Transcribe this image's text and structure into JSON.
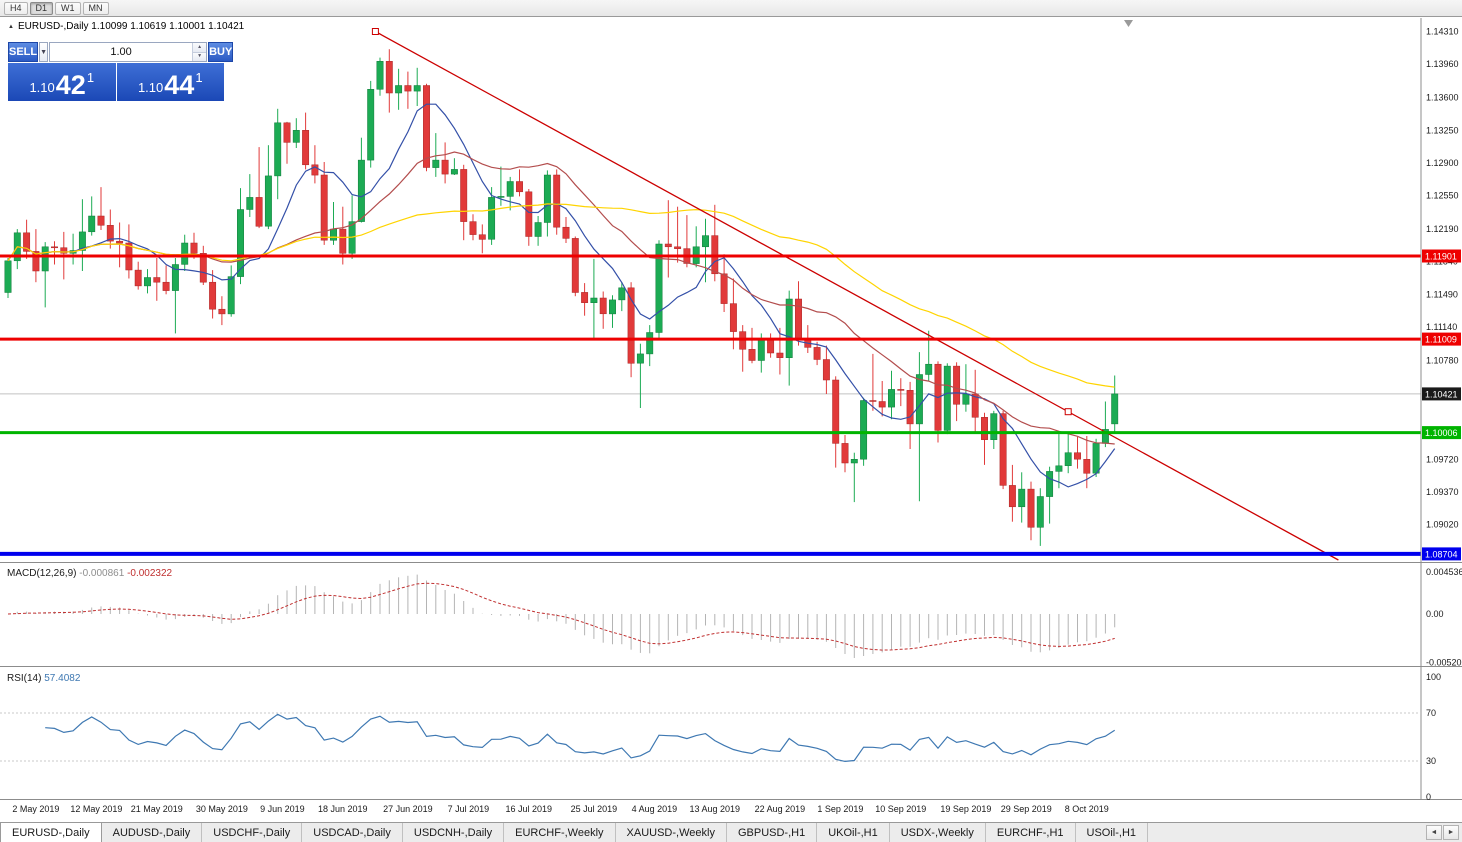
{
  "window": {
    "timeframes": [
      "H4",
      "D1",
      "W1",
      "MN"
    ],
    "active_timeframe": "D1"
  },
  "symbol_header": {
    "marker": "▲",
    "text": "EURUSD-,Daily 1.10099 1.10619 1.10001 1.10421"
  },
  "trade_panel": {
    "sell_label": "SELL",
    "buy_label": "BUY",
    "volume": "1.00",
    "dropdown_icon": "▼",
    "spin_up_icon": "▲",
    "spin_down_icon": "▼",
    "bid": {
      "prefix": "1.10",
      "big": "42",
      "sup": "1"
    },
    "ask": {
      "prefix": "1.10",
      "big": "44",
      "sup": "1"
    }
  },
  "chart_data": {
    "type": "candlestick",
    "symbol": "EURUSD-,Daily",
    "ohlc": [
      [
        1.1151,
        1.1188,
        1.1145,
        1.1185
      ],
      [
        1.1185,
        1.1219,
        1.1176,
        1.1215
      ],
      [
        1.1215,
        1.1229,
        1.1187,
        1.1195
      ],
      [
        1.1195,
        1.1219,
        1.1162,
        1.1174
      ],
      [
        1.1174,
        1.1205,
        1.1135,
        1.12
      ],
      [
        1.12,
        1.1206,
        1.1181,
        1.1199
      ],
      [
        1.1199,
        1.1216,
        1.1165,
        1.1193
      ],
      [
        1.1193,
        1.1214,
        1.1181,
        1.1196
      ],
      [
        1.1196,
        1.1251,
        1.1174,
        1.1216
      ],
      [
        1.1216,
        1.1254,
        1.1212,
        1.1233
      ],
      [
        1.1233,
        1.1264,
        1.1218,
        1.1223
      ],
      [
        1.1223,
        1.124,
        1.1198,
        1.1206
      ],
      [
        1.1206,
        1.1226,
        1.1178,
        1.1204
      ],
      [
        1.1204,
        1.1224,
        1.1166,
        1.1175
      ],
      [
        1.1175,
        1.1184,
        1.1154,
        1.1158
      ],
      [
        1.1158,
        1.1176,
        1.115,
        1.1167
      ],
      [
        1.1167,
        1.1188,
        1.1142,
        1.1162
      ],
      [
        1.1162,
        1.118,
        1.1149,
        1.1153
      ],
      [
        1.1153,
        1.1188,
        1.1107,
        1.1181
      ],
      [
        1.1181,
        1.1213,
        1.1174,
        1.1204
      ],
      [
        1.1204,
        1.1215,
        1.1187,
        1.1193
      ],
      [
        1.1193,
        1.1201,
        1.1159,
        1.1162
      ],
      [
        1.1162,
        1.1175,
        1.1123,
        1.1133
      ],
      [
        1.1133,
        1.1147,
        1.1116,
        1.1128
      ],
      [
        1.1128,
        1.118,
        1.1125,
        1.1168
      ],
      [
        1.1168,
        1.1263,
        1.116,
        1.124
      ],
      [
        1.124,
        1.1278,
        1.1232,
        1.1253
      ],
      [
        1.1253,
        1.1307,
        1.122,
        1.1222
      ],
      [
        1.1222,
        1.1309,
        1.1219,
        1.1276
      ],
      [
        1.1276,
        1.1348,
        1.1251,
        1.1333
      ],
      [
        1.1333,
        1.1334,
        1.1289,
        1.1312
      ],
      [
        1.1312,
        1.1338,
        1.1306,
        1.1325
      ],
      [
        1.1325,
        1.1344,
        1.1283,
        1.1288
      ],
      [
        1.1288,
        1.1309,
        1.1268,
        1.1277
      ],
      [
        1.1277,
        1.1291,
        1.1202,
        1.1207
      ],
      [
        1.1207,
        1.1248,
        1.1202,
        1.1219
      ],
      [
        1.1219,
        1.1243,
        1.1181,
        1.1193
      ],
      [
        1.1193,
        1.1255,
        1.1187,
        1.1227
      ],
      [
        1.1227,
        1.1317,
        1.1226,
        1.1293
      ],
      [
        1.1293,
        1.1378,
        1.1285,
        1.1369
      ],
      [
        1.1369,
        1.1403,
        1.1362,
        1.1399
      ],
      [
        1.1399,
        1.1412,
        1.1344,
        1.1365
      ],
      [
        1.1365,
        1.1391,
        1.1347,
        1.1373
      ],
      [
        1.1373,
        1.1388,
        1.1348,
        1.1367
      ],
      [
        1.1367,
        1.1392,
        1.1351,
        1.1373
      ],
      [
        1.1373,
        1.1375,
        1.1281,
        1.1285
      ],
      [
        1.1285,
        1.1322,
        1.1275,
        1.1293
      ],
      [
        1.1293,
        1.1312,
        1.1268,
        1.1278
      ],
      [
        1.1278,
        1.1295,
        1.1277,
        1.1283
      ],
      [
        1.1283,
        1.1288,
        1.1207,
        1.1227
      ],
      [
        1.1227,
        1.1235,
        1.1207,
        1.1213
      ],
      [
        1.1213,
        1.1224,
        1.1193,
        1.1208
      ],
      [
        1.1208,
        1.1264,
        1.1202,
        1.1253
      ],
      [
        1.1253,
        1.1286,
        1.1244,
        1.1254
      ],
      [
        1.1254,
        1.1275,
        1.1239,
        1.127
      ],
      [
        1.127,
        1.1283,
        1.1254,
        1.1259
      ],
      [
        1.1259,
        1.1262,
        1.1201,
        1.1211
      ],
      [
        1.1211,
        1.1233,
        1.1201,
        1.1226
      ],
      [
        1.1226,
        1.1282,
        1.1211,
        1.1277
      ],
      [
        1.1277,
        1.1283,
        1.1213,
        1.1221
      ],
      [
        1.1221,
        1.1232,
        1.1204,
        1.1209
      ],
      [
        1.1209,
        1.1211,
        1.1147,
        1.1151
      ],
      [
        1.1151,
        1.1161,
        1.1126,
        1.114
      ],
      [
        1.114,
        1.1187,
        1.1101,
        1.1145
      ],
      [
        1.1145,
        1.1152,
        1.1112,
        1.1128
      ],
      [
        1.1128,
        1.1148,
        1.1113,
        1.1143
      ],
      [
        1.1143,
        1.1162,
        1.1131,
        1.1156
      ],
      [
        1.1156,
        1.1162,
        1.106,
        1.1075
      ],
      [
        1.1075,
        1.1096,
        1.1027,
        1.1085
      ],
      [
        1.1085,
        1.1116,
        1.1072,
        1.1108
      ],
      [
        1.1108,
        1.1207,
        1.1101,
        1.1203
      ],
      [
        1.1203,
        1.125,
        1.1167,
        1.12
      ],
      [
        1.12,
        1.1243,
        1.1183,
        1.1198
      ],
      [
        1.1198,
        1.1234,
        1.1178,
        1.1182
      ],
      [
        1.1182,
        1.1222,
        1.1178,
        1.12
      ],
      [
        1.12,
        1.123,
        1.1162,
        1.1212
      ],
      [
        1.1212,
        1.1245,
        1.1163,
        1.1171
      ],
      [
        1.1171,
        1.1192,
        1.113,
        1.1139
      ],
      [
        1.1139,
        1.1166,
        1.109,
        1.1109
      ],
      [
        1.1109,
        1.1116,
        1.1066,
        1.109
      ],
      [
        1.109,
        1.1113,
        1.1075,
        1.1078
      ],
      [
        1.1078,
        1.1107,
        1.1065,
        1.11
      ],
      [
        1.11,
        1.1107,
        1.1081,
        1.1086
      ],
      [
        1.1086,
        1.1113,
        1.1063,
        1.1081
      ],
      [
        1.1081,
        1.1153,
        1.1051,
        1.1144
      ],
      [
        1.1144,
        1.1163,
        1.1094,
        1.1101
      ],
      [
        1.1101,
        1.1116,
        1.1086,
        1.1092
      ],
      [
        1.1092,
        1.1098,
        1.1073,
        1.1079
      ],
      [
        1.1079,
        1.1094,
        1.1042,
        1.1057
      ],
      [
        1.1057,
        1.1061,
        1.0963,
        1.0989
      ],
      [
        1.0989,
        1.0998,
        1.0958,
        1.0968
      ],
      [
        1.0968,
        1.0979,
        1.0926,
        1.0972
      ],
      [
        1.0972,
        1.1038,
        1.0965,
        1.1035
      ],
      [
        1.1035,
        1.1085,
        1.1024,
        1.1034
      ],
      [
        1.1034,
        1.1056,
        1.1018,
        1.1028
      ],
      [
        1.1028,
        1.1067,
        1.1015,
        1.1047
      ],
      [
        1.1047,
        1.1059,
        1.1029,
        1.1046
      ],
      [
        1.1046,
        1.1055,
        1.0983,
        1.101
      ],
      [
        1.101,
        1.1087,
        1.0927,
        1.1063
      ],
      [
        1.1063,
        1.111,
        1.1056,
        1.1074
      ],
      [
        1.1074,
        1.1077,
        1.099,
        1.1003
      ],
      [
        1.1003,
        1.1075,
        1.0999,
        1.1072
      ],
      [
        1.1072,
        1.1076,
        1.1013,
        1.1031
      ],
      [
        1.1031,
        1.1074,
        1.1023,
        1.1042
      ],
      [
        1.1042,
        1.1068,
        1.1,
        1.1017
      ],
      [
        1.1017,
        1.1022,
        1.0966,
        1.0993
      ],
      [
        1.0993,
        1.1024,
        1.0983,
        1.1021
      ],
      [
        1.1021,
        1.1024,
        1.094,
        1.0944
      ],
      [
        1.0944,
        1.0966,
        1.0905,
        1.0921
      ],
      [
        1.0921,
        1.0958,
        1.0904,
        1.094
      ],
      [
        1.094,
        1.0948,
        1.0885,
        1.0899
      ],
      [
        1.0899,
        1.0941,
        1.0879,
        1.0932
      ],
      [
        1.0932,
        1.0964,
        1.0903,
        1.0959
      ],
      [
        1.0959,
        1.0999,
        1.0941,
        1.0965
      ],
      [
        1.0965,
        1.0999,
        1.0957,
        1.0979
      ],
      [
        1.0979,
        1.0996,
        1.0962,
        1.0972
      ],
      [
        1.0972,
        1.0997,
        1.0941,
        1.0957
      ],
      [
        1.0957,
        1.0994,
        1.0953,
        1.0989
      ],
      [
        1.0989,
        1.1034,
        1.0985,
        1.1004
      ],
      [
        1.10099,
        1.10619,
        1.10001,
        1.10421
      ]
    ],
    "x_labels": [
      {
        "text": "2 May 2019",
        "bar": 3
      },
      {
        "text": "12 May 2019",
        "bar": 9.5
      },
      {
        "text": "21 May 2019",
        "bar": 16
      },
      {
        "text": "30 May 2019",
        "bar": 23
      },
      {
        "text": "9 Jun 2019",
        "bar": 29.5
      },
      {
        "text": "18 Jun 2019",
        "bar": 36
      },
      {
        "text": "27 Jun 2019",
        "bar": 43
      },
      {
        "text": "7 Jul 2019",
        "bar": 49.5
      },
      {
        "text": "16 Jul 2019",
        "bar": 56
      },
      {
        "text": "25 Jul 2019",
        "bar": 63
      },
      {
        "text": "4 Aug 2019",
        "bar": 69.5
      },
      {
        "text": "13 Aug 2019",
        "bar": 76
      },
      {
        "text": "22 Aug 2019",
        "bar": 83
      },
      {
        "text": "1 Sep 2019",
        "bar": 89.5
      },
      {
        "text": "10 Sep 2019",
        "bar": 96
      },
      {
        "text": "19 Sep 2019",
        "bar": 103
      },
      {
        "text": "29 Sep 2019",
        "bar": 109.5
      },
      {
        "text": "8 Oct 2019",
        "bar": 116
      }
    ],
    "price_axis": {
      "ticks": [
        "1.14310",
        "1.13960",
        "1.13600",
        "1.13250",
        "1.12900",
        "1.12550",
        "1.12190",
        "1.11840",
        "1.11490",
        "1.11140",
        "1.10780",
        "1.09720",
        "1.09370",
        "1.09020"
      ]
    },
    "levels": [
      {
        "value": 1.11901,
        "label": "1.11901",
        "color": "#ee0000",
        "width": 3
      },
      {
        "value": 1.11009,
        "label": "1.11009",
        "color": "#ee0000",
        "width": 3
      },
      {
        "value": 1.10006,
        "label": "1.10006",
        "color": "#00b400",
        "width": 3
      },
      {
        "value": 1.08704,
        "label": "1.08704",
        "color": "#0000ee",
        "width": 4
      }
    ],
    "current_price": {
      "value": 1.10421,
      "label": "1.10421",
      "line_color": "#c2c2c2",
      "box_color": "#1a1a1a"
    },
    "trendline": {
      "color": "#cc0000",
      "p1": {
        "bar": 39.5,
        "price": 1.1431
      },
      "p2": {
        "bar": 114,
        "price": 1.1023
      }
    },
    "indicators": {
      "ma": [
        {
          "period": 8,
          "color": "#3450a8"
        },
        {
          "period": 21,
          "color": "#b34d4d"
        },
        {
          "period": 50,
          "color": "#ffd400"
        }
      ],
      "macd": {
        "label": "MACD(12,26,9)",
        "value_main": "-0.000861",
        "value_signal": "-0.002322",
        "params": [
          12,
          26,
          9
        ],
        "axis": [
          "0.004536",
          "0.00",
          "-0.005205"
        ]
      },
      "rsi": {
        "label": "RSI(14)",
        "value": "57.4082",
        "period": 14,
        "levels": [
          70,
          30
        ],
        "axis": [
          "100",
          "70",
          "30",
          "0"
        ]
      }
    },
    "colors": {
      "up": "#1cab54",
      "down": "#e13a3a",
      "up_dark": "#0e7a38",
      "down_dark": "#a82626",
      "macd_hist": "#b4b4b4",
      "macd_signal": "#c03030",
      "rsi_line": "#3e78b2"
    }
  },
  "tabs": {
    "items": [
      "EURUSD-,Daily",
      "AUDUSD-,Daily",
      "USDCHF-,Daily",
      "USDCAD-,Daily",
      "USDCNH-,Daily",
      "EURCHF-,Weekly",
      "XAUUSD-,Weekly",
      "GBPUSD-,H1",
      "UKOil-,H1",
      "USDX-,Weekly",
      "EURCHF-,H1",
      "USOil-,H1"
    ],
    "active_index": 0,
    "scroll_left_icon": "◄",
    "scroll_right_icon": "►"
  }
}
